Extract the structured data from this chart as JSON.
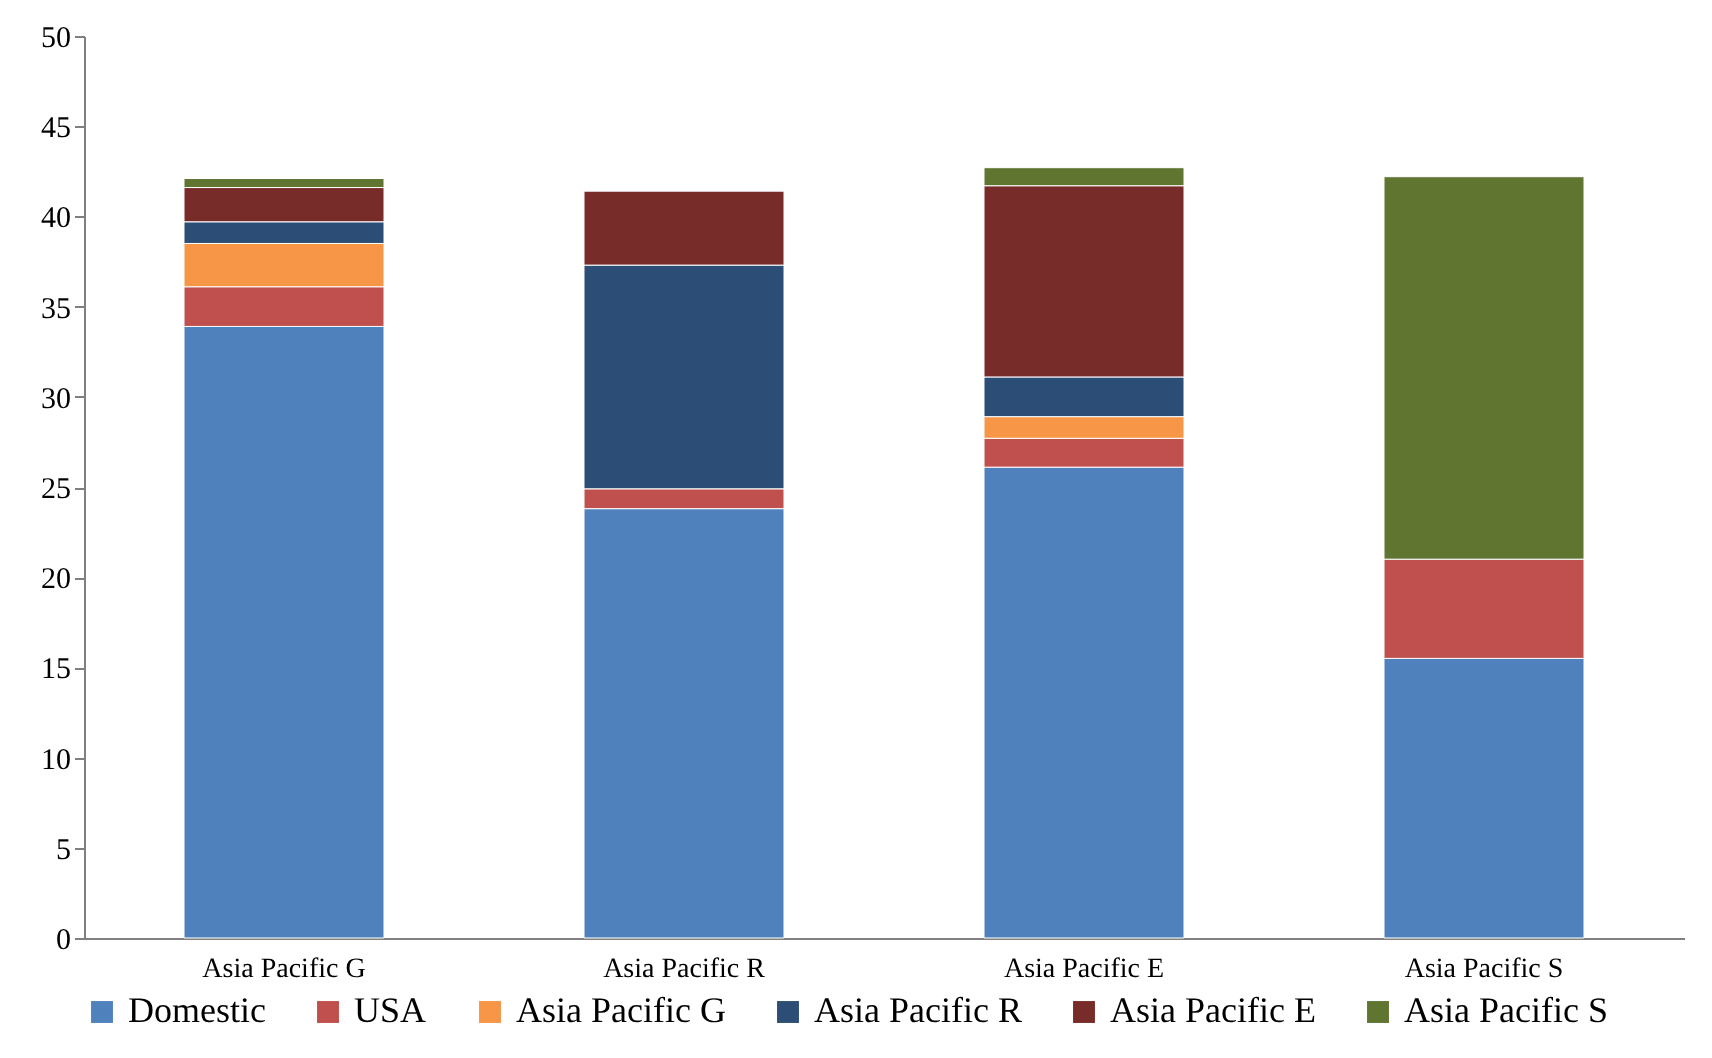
{
  "chart_data": {
    "type": "bar",
    "stacked": true,
    "categories": [
      "Asia Pacific G",
      "Asia Pacific R",
      "Asia Pacific E",
      "Asia Pacific S"
    ],
    "series": [
      {
        "name": "Domestic",
        "color": "#4f81bd",
        "values": [
          33.9,
          23.8,
          26.1,
          15.5
        ]
      },
      {
        "name": "USA",
        "color": "#c0504d",
        "values": [
          2.2,
          1.1,
          1.6,
          5.5
        ]
      },
      {
        "name": "Asia Pacific G",
        "color": "#f79646",
        "values": [
          2.4,
          null,
          1.2,
          null
        ]
      },
      {
        "name": "Asia Pacific R",
        "color": "#2c4d75",
        "values": [
          1.2,
          12.4,
          2.2,
          null
        ]
      },
      {
        "name": "Asia Pacific E",
        "color": "#772c2a",
        "values": [
          1.9,
          4.1,
          10.6,
          null
        ]
      },
      {
        "name": "Asia Pacific S",
        "color": "#5f7530",
        "values": [
          0.5,
          null,
          1.0,
          21.2
        ]
      }
    ],
    "ylim": [
      0,
      50
    ],
    "yticks": [
      0,
      5,
      10,
      15,
      20,
      25,
      30,
      35,
      40,
      45,
      50
    ],
    "grid": false,
    "legend": "bottom"
  }
}
